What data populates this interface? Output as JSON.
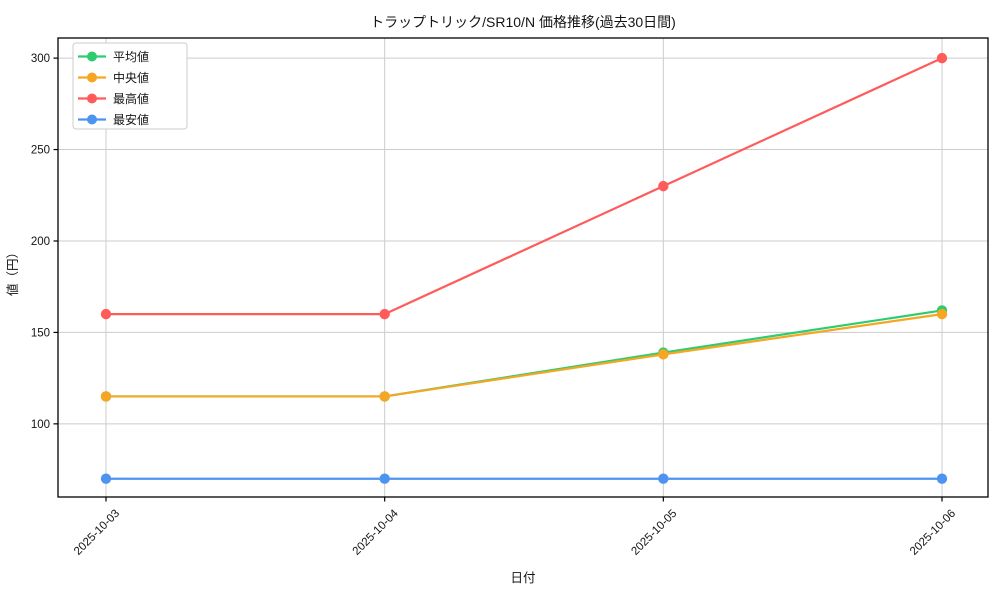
{
  "chart_data": {
    "type": "line",
    "title": "トラップトリック/SR10/N 価格推移(過去30日間)",
    "xlabel": "日付",
    "ylabel": "値（円）",
    "categories": [
      "2025-10-03",
      "2025-10-04",
      "2025-10-05",
      "2025-10-06"
    ],
    "series": [
      {
        "name": "平均値",
        "color": "#2ecc71",
        "values": [
          115,
          115,
          139,
          162
        ]
      },
      {
        "name": "中央値",
        "color": "#f5a623",
        "values": [
          115,
          115,
          138,
          160
        ]
      },
      {
        "name": "最高値",
        "color": "#ff5b5b",
        "values": [
          160,
          160,
          230,
          300
        ]
      },
      {
        "name": "最安値",
        "color": "#4d94f0",
        "values": [
          70,
          70,
          70,
          70
        ]
      }
    ],
    "yticks": [
      100,
      150,
      200,
      250,
      300
    ],
    "ylim": [
      60,
      311
    ],
    "grid": true,
    "legend_position": "upper left",
    "x_tick_rotation": 45,
    "colors": {
      "grid": "#cccccc",
      "axis": "#000000",
      "background": "#ffffff"
    }
  }
}
